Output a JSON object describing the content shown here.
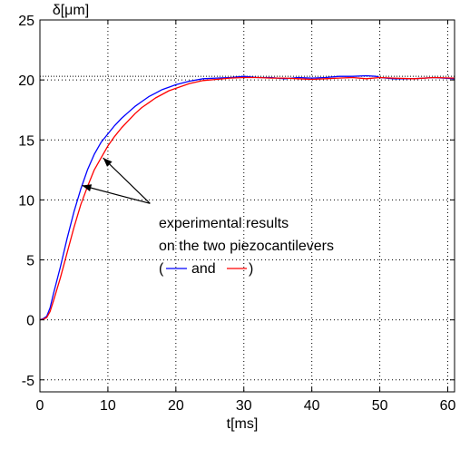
{
  "chart_data": {
    "type": "line",
    "title": "",
    "xlabel": "t[ms]",
    "ylabel": "δ[μm]",
    "xlim": [
      0,
      61
    ],
    "ylim": [
      -6,
      25
    ],
    "xticks": [
      0,
      10,
      20,
      30,
      40,
      50,
      60
    ],
    "yticks": [
      -5,
      0,
      5,
      10,
      15,
      20,
      25
    ],
    "xtick_labels": [
      "0",
      "10",
      "20",
      "30",
      "40",
      "50",
      "60"
    ],
    "ytick_labels": [
      "-5",
      "0",
      "5",
      "10",
      "15",
      "20",
      "25"
    ],
    "grid": true,
    "reference_level": 20.3,
    "series": [
      {
        "color": "#0000ff",
        "x": [
          0,
          0.5,
          1,
          1.5,
          2,
          3,
          4,
          5,
          6,
          7,
          8,
          9,
          10,
          11,
          12,
          13,
          14,
          15,
          16,
          17,
          18,
          19,
          20,
          22,
          24,
          26,
          28,
          30,
          32,
          34,
          36,
          38,
          40,
          42,
          44,
          46,
          48,
          49.5,
          50,
          52,
          55,
          58,
          61
        ],
        "y": [
          0,
          0.1,
          0.3,
          1.0,
          2.2,
          4.4,
          6.8,
          9.0,
          10.9,
          12.5,
          13.8,
          14.8,
          15.5,
          16.2,
          16.8,
          17.3,
          17.8,
          18.2,
          18.6,
          18.9,
          19.2,
          19.4,
          19.6,
          19.9,
          20.1,
          20.15,
          20.2,
          20.3,
          20.2,
          20.2,
          20.1,
          20.2,
          20.15,
          20.2,
          20.3,
          20.3,
          20.35,
          20.3,
          20.2,
          20.1,
          20.1,
          20.2,
          20.1
        ]
      },
      {
        "color": "#ff0000",
        "x": [
          0,
          0.5,
          1,
          1.5,
          2,
          3,
          4,
          5,
          6,
          7,
          8,
          9,
          10,
          11,
          12,
          13,
          14,
          15,
          16,
          17,
          18,
          19,
          20,
          22,
          24,
          26,
          28,
          30,
          32,
          34,
          36,
          38,
          40,
          42,
          44,
          46,
          48,
          50,
          52,
          55,
          58,
          61
        ],
        "y": [
          0,
          0.05,
          0.2,
          0.7,
          1.6,
          3.5,
          5.6,
          7.7,
          9.6,
          11.1,
          12.5,
          13.5,
          14.5,
          15.3,
          16.0,
          16.6,
          17.2,
          17.7,
          18.1,
          18.5,
          18.8,
          19.1,
          19.3,
          19.7,
          19.95,
          20.05,
          20.15,
          20.2,
          20.2,
          20.15,
          20.15,
          20.1,
          20.05,
          20.1,
          20.15,
          20.2,
          20.1,
          20.2,
          20.15,
          20.1,
          20.2,
          20.15
        ]
      }
    ],
    "annotation": {
      "lines": [
        "experimental results",
        "on the two piezocantilevers",
        "(",
        "and",
        ")"
      ],
      "arrow_targets": [
        {
          "x": 9.3,
          "y": 13.5
        },
        {
          "x": 6.2,
          "y": 11.2
        }
      ],
      "arrow_origin": {
        "x": 16.2,
        "y": 9.7
      }
    }
  }
}
